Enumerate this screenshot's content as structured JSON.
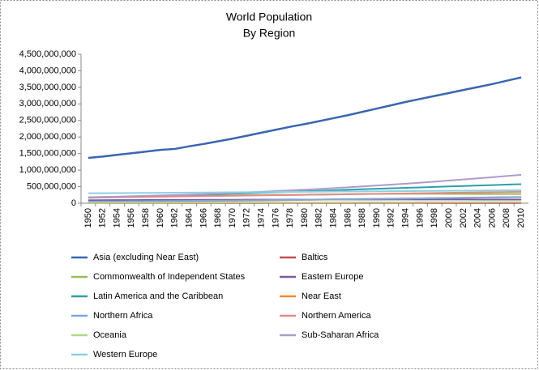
{
  "chart_data": {
    "type": "line",
    "title": "World Population",
    "subtitle": "By Region",
    "categories": [
      "1950",
      "1952",
      "1954",
      "1956",
      "1958",
      "1960",
      "1962",
      "1964",
      "1966",
      "1968",
      "1970",
      "1972",
      "1974",
      "1976",
      "1978",
      "1980",
      "1982",
      "1984",
      "1986",
      "1988",
      "1990",
      "1992",
      "1994",
      "1996",
      "1998",
      "2000",
      "2002",
      "2004",
      "2006",
      "2008",
      "2010"
    ],
    "ylim": [
      0,
      4500000000
    ],
    "yticks": [
      0,
      {
        "value": 500000000,
        "label": "500,000,000"
      },
      {
        "value": 1000000000,
        "label": "1,000,000,000"
      },
      {
        "value": 1500000000,
        "label": "1,500,000,000"
      },
      {
        "value": 2000000000,
        "label": "2,000,000,000"
      },
      {
        "value": 2500000000,
        "label": "2,500,000,000"
      },
      {
        "value": 3000000000,
        "label": "3,000,000,000"
      },
      {
        "value": 3500000000,
        "label": "3,500,000,000"
      },
      {
        "value": 4000000000,
        "label": "4,000,000,000"
      },
      {
        "value": 4500000000,
        "label": "4,500,000,000"
      }
    ],
    "grid": false,
    "legend": "bottom",
    "series": [
      {
        "name": "Asia (excluding Near East)",
        "color": "#3a66b0",
        "values": [
          1370000000,
          1410000000,
          1460000000,
          1510000000,
          1560000000,
          1610000000,
          1640000000,
          1720000000,
          1790000000,
          1870000000,
          1950000000,
          2040000000,
          2130000000,
          2220000000,
          2310000000,
          2390000000,
          2480000000,
          2570000000,
          2660000000,
          2760000000,
          2860000000,
          2960000000,
          3060000000,
          3150000000,
          3240000000,
          3330000000,
          3420000000,
          3510000000,
          3600000000,
          3700000000,
          3800000000
        ]
      },
      {
        "name": "Baltics",
        "color": "#c0504d",
        "values": [
          5600000,
          5800000,
          6000000,
          6200000,
          6400000,
          6600000,
          6800000,
          7000000,
          7200000,
          7400000,
          7500000,
          7600000,
          7700000,
          7800000,
          7900000,
          8000000,
          8100000,
          8200000,
          8300000,
          8400000,
          8500000,
          8400000,
          8100000,
          7900000,
          7700000,
          7500000,
          7400000,
          7300000,
          7200000,
          7100000,
          7000000
        ]
      },
      {
        "name": "Commonwealth of Independent States",
        "color": "#9bbb59",
        "values": [
          180000000,
          186000000,
          192000000,
          198000000,
          204000000,
          210000000,
          216000000,
          222000000,
          227000000,
          232000000,
          237000000,
          242000000,
          246000000,
          250000000,
          254000000,
          258000000,
          262000000,
          267000000,
          272000000,
          277000000,
          281000000,
          283000000,
          284000000,
          284000000,
          283000000,
          282000000,
          280000000,
          279000000,
          278000000,
          278000000,
          279000000
        ]
      },
      {
        "name": "Eastern Europe",
        "color": "#7a5aa0",
        "values": [
          90000000,
          92000000,
          94000000,
          96000000,
          98000000,
          100000000,
          101000000,
          102000000,
          103000000,
          104000000,
          105000000,
          106000000,
          107000000,
          108000000,
          109000000,
          110000000,
          111000000,
          112000000,
          113000000,
          113000000,
          113000000,
          113000000,
          113000000,
          113000000,
          113000000,
          112000000,
          112000000,
          111000000,
          111000000,
          110000000,
          110000000
        ]
      },
      {
        "name": "Latin America and the Caribbean",
        "color": "#2e9fa8",
        "values": [
          165000000,
          175000000,
          186000000,
          197000000,
          209000000,
          221000000,
          234000000,
          247000000,
          261000000,
          275000000,
          289000000,
          303000000,
          317000000,
          331000000,
          346000000,
          361000000,
          376000000,
          391000000,
          406000000,
          421000000,
          436000000,
          450000000,
          464000000,
          478000000,
          492000000,
          506000000,
          520000000,
          534000000,
          548000000,
          562000000,
          576000000
        ]
      },
      {
        "name": "Near East",
        "color": "#f08a2c",
        "values": [
          40000000,
          42000000,
          44000000,
          47000000,
          50000000,
          53000000,
          56000000,
          60000000,
          64000000,
          68000000,
          73000000,
          78000000,
          83000000,
          88000000,
          94000000,
          100000000,
          106000000,
          112000000,
          118000000,
          124000000,
          130000000,
          136000000,
          142000000,
          148000000,
          154000000,
          160000000,
          166000000,
          172000000,
          178000000,
          184000000,
          190000000
        ]
      },
      {
        "name": "Northern Africa",
        "color": "#7ea6dc",
        "values": [
          50000000,
          52000000,
          55000000,
          58000000,
          61000000,
          64000000,
          67000000,
          71000000,
          75000000,
          79000000,
          83000000,
          87000000,
          92000000,
          97000000,
          102000000,
          107000000,
          112000000,
          117000000,
          122000000,
          127000000,
          132000000,
          137000000,
          142000000,
          147000000,
          152000000,
          157000000,
          162000000,
          167000000,
          172000000,
          177000000,
          182000000
        ]
      },
      {
        "name": "Northern America",
        "color": "#e28a86",
        "values": [
          165000000,
          171000000,
          177000000,
          183000000,
          189000000,
          195000000,
          201000000,
          207000000,
          213000000,
          219000000,
          225000000,
          231000000,
          237000000,
          243000000,
          249000000,
          255000000,
          261000000,
          267000000,
          273000000,
          279000000,
          285000000,
          291000000,
          297000000,
          303000000,
          309000000,
          315000000,
          321000000,
          327000000,
          333000000,
          339000000,
          345000000
        ]
      },
      {
        "name": "Oceania",
        "color": "#b5d488",
        "values": [
          12500000,
          13200000,
          14000000,
          14800000,
          15600000,
          16400000,
          17200000,
          18000000,
          18700000,
          19400000,
          20100000,
          20800000,
          21500000,
          22200000,
          22900000,
          23600000,
          24300000,
          25000000,
          25700000,
          26400000,
          27100000,
          27800000,
          28500000,
          29200000,
          29900000,
          30600000,
          31300000,
          32000000,
          32800000,
          33600000,
          34400000
        ]
      },
      {
        "name": "Sub-Saharan Africa",
        "color": "#ad9ccb",
        "values": [
          180000000,
          190000000,
          200000000,
          211000000,
          222000000,
          234000000,
          247000000,
          261000000,
          276000000,
          292000000,
          309000000,
          327000000,
          346000000,
          366000000,
          387000000,
          409000000,
          432000000,
          456000000,
          481000000,
          507000000,
          534000000,
          562000000,
          591000000,
          621000000,
          652000000,
          684000000,
          717000000,
          751000000,
          786000000,
          822000000,
          859000000
        ]
      },
      {
        "name": "Western Europe",
        "color": "#8fd0e2",
        "values": [
          300000000,
          303000000,
          306000000,
          309000000,
          312000000,
          315000000,
          318000000,
          321000000,
          324000000,
          327000000,
          330000000,
          333000000,
          336000000,
          339000000,
          342000000,
          345000000,
          348000000,
          351000000,
          354000000,
          357000000,
          360000000,
          363000000,
          366000000,
          369000000,
          372000000,
          375000000,
          378000000,
          381000000,
          384000000,
          387000000,
          390000000
        ]
      }
    ]
  }
}
